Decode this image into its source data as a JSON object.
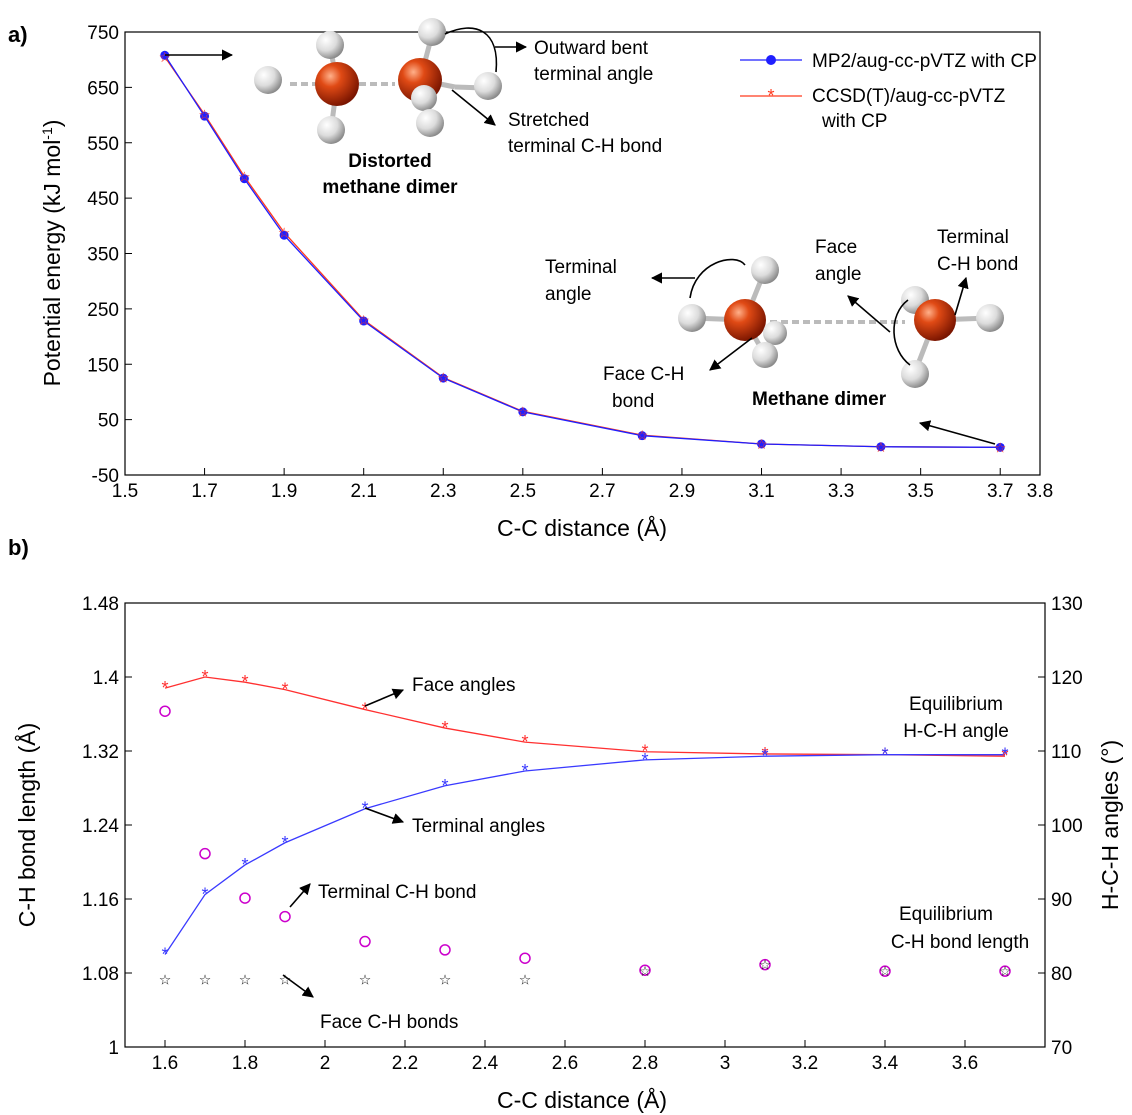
{
  "chart_data": [
    {
      "panel_label": "a)",
      "type": "line",
      "xlabel": "C-C distance (Å)",
      "ylabel": "Potential energy (kJ mol",
      "ylabel_sup": "-1",
      "ylabel_close": ")",
      "xlim": [
        1.5,
        3.8
      ],
      "ylim": [
        -50,
        750
      ],
      "xticks": [
        "1.5",
        "1.7",
        "1.9",
        "2.1",
        "2.3",
        "2.5",
        "2.7",
        "2.9",
        "3.1",
        "3.3",
        "3.5",
        "3.7",
        "3.8"
      ],
      "yticks": [
        "-50",
        "50",
        "150",
        "250",
        "350",
        "450",
        "550",
        "650",
        "750"
      ],
      "legend_position": "top-right",
      "series": [
        {
          "name": "MP2/aug-cc-pVTZ with CP",
          "color": "#1f1fff",
          "marker": "dot",
          "x": [
            1.6,
            1.7,
            1.8,
            1.9,
            2.1,
            2.3,
            2.5,
            2.8,
            3.1,
            3.4,
            3.7
          ],
          "values": [
            708,
            598,
            485,
            383,
            228,
            125,
            64,
            21,
            6,
            1,
            0
          ]
        },
        {
          "name": "CCSD(T)/aug-cc-pVTZ",
          "name_line2": "with CP",
          "color": "#ff3b1f",
          "marker": "star",
          "x": [
            1.6,
            1.7,
            1.8,
            1.9,
            2.1,
            2.3,
            2.5,
            2.8,
            3.1,
            3.4,
            3.7
          ],
          "values": [
            705,
            601,
            489,
            388,
            230,
            126,
            65,
            22,
            6,
            1,
            0
          ]
        }
      ],
      "annotations": {
        "distorted_title_1": "Distorted",
        "distorted_title_2": "methane dimer",
        "outward_1": "Outward bent",
        "outward_2": "terminal angle",
        "stretched_1": "Stretched",
        "stretched_2": "terminal C-H bond",
        "terminal_angle_1": "Terminal",
        "terminal_angle_2": "angle",
        "face_angle_1": "Face",
        "face_angle_2": "angle",
        "terminal_bond_1": "Terminal",
        "terminal_bond_2": "C-H bond",
        "face_bond_1": "Face C-H",
        "face_bond_2": "bond",
        "methane_dimer": "Methane dimer"
      }
    },
    {
      "panel_label": "b)",
      "type": "line",
      "xlabel": "C-C distance (Å)",
      "ylabel_left": "C-H bond length (Å)",
      "ylabel_right": "H-C-H angles (°)",
      "xlim": [
        1.5,
        3.8
      ],
      "ylim_left": [
        1,
        1.48
      ],
      "ylim_right": [
        70,
        130
      ],
      "xticks": [
        "1.6",
        "1.8",
        "2",
        "2.2",
        "2.4",
        "2.6",
        "2.8",
        "3",
        "3.2",
        "3.4",
        "3.6"
      ],
      "yticks_left": [
        "1",
        "1.08",
        "1.16",
        "1.24",
        "1.32",
        "1.4",
        "1.48"
      ],
      "yticks_right": [
        "70",
        "80",
        "90",
        "100",
        "110",
        "120",
        "130"
      ],
      "series": [
        {
          "name": "Face angles",
          "axis": "right",
          "color": "#ff3030",
          "marker": "asterisk",
          "x": [
            1.6,
            1.7,
            1.8,
            1.9,
            2.1,
            2.3,
            2.5,
            2.8,
            3.1,
            3.4,
            3.7
          ],
          "values": [
            118.5,
            120.0,
            119.3,
            118.3,
            115.6,
            113.1,
            111.2,
            109.9,
            109.6,
            109.5,
            109.3
          ]
        },
        {
          "name": "Terminal angles",
          "axis": "right",
          "color": "#3a3aff",
          "marker": "asterisk",
          "x": [
            1.6,
            1.7,
            1.8,
            1.9,
            2.1,
            2.3,
            2.5,
            2.8,
            3.1,
            3.4,
            3.7
          ],
          "values": [
            82.5,
            90.6,
            94.6,
            97.6,
            102.2,
            105.3,
            107.3,
            108.8,
            109.3,
            109.5,
            109.5
          ]
        },
        {
          "name": "Terminal C-H bond",
          "axis": "left",
          "color": "#cc00cc",
          "marker": "circle",
          "x": [
            1.6,
            1.7,
            1.8,
            1.9,
            2.1,
            2.3,
            2.5,
            2.8,
            3.1,
            3.4,
            3.7
          ],
          "values": [
            1.363,
            1.209,
            1.161,
            1.141,
            1.114,
            1.105,
            1.096,
            1.083,
            1.089,
            1.082,
            1.082
          ]
        },
        {
          "name": "Face C-H bonds",
          "axis": "left",
          "color": "#111111",
          "marker": "star",
          "x": [
            1.6,
            1.7,
            1.8,
            1.9,
            2.1,
            2.3,
            2.5,
            2.8,
            3.1,
            3.4,
            3.7
          ],
          "values": [
            1.073,
            1.073,
            1.073,
            1.073,
            1.073,
            1.073,
            1.073,
            1.082,
            1.089,
            1.082,
            1.082
          ]
        }
      ],
      "annotations": {
        "face_angles": "Face angles",
        "terminal_angles": "Terminal angles",
        "terminal_ch_bond": "Terminal C-H bond",
        "face_ch_bonds": "Face C-H bonds",
        "eq_angle_1": "Equilibrium",
        "eq_angle_2": "H-C-H angle",
        "eq_bond_1": "Equilibrium",
        "eq_bond_2": "C-H bond length"
      }
    }
  ]
}
